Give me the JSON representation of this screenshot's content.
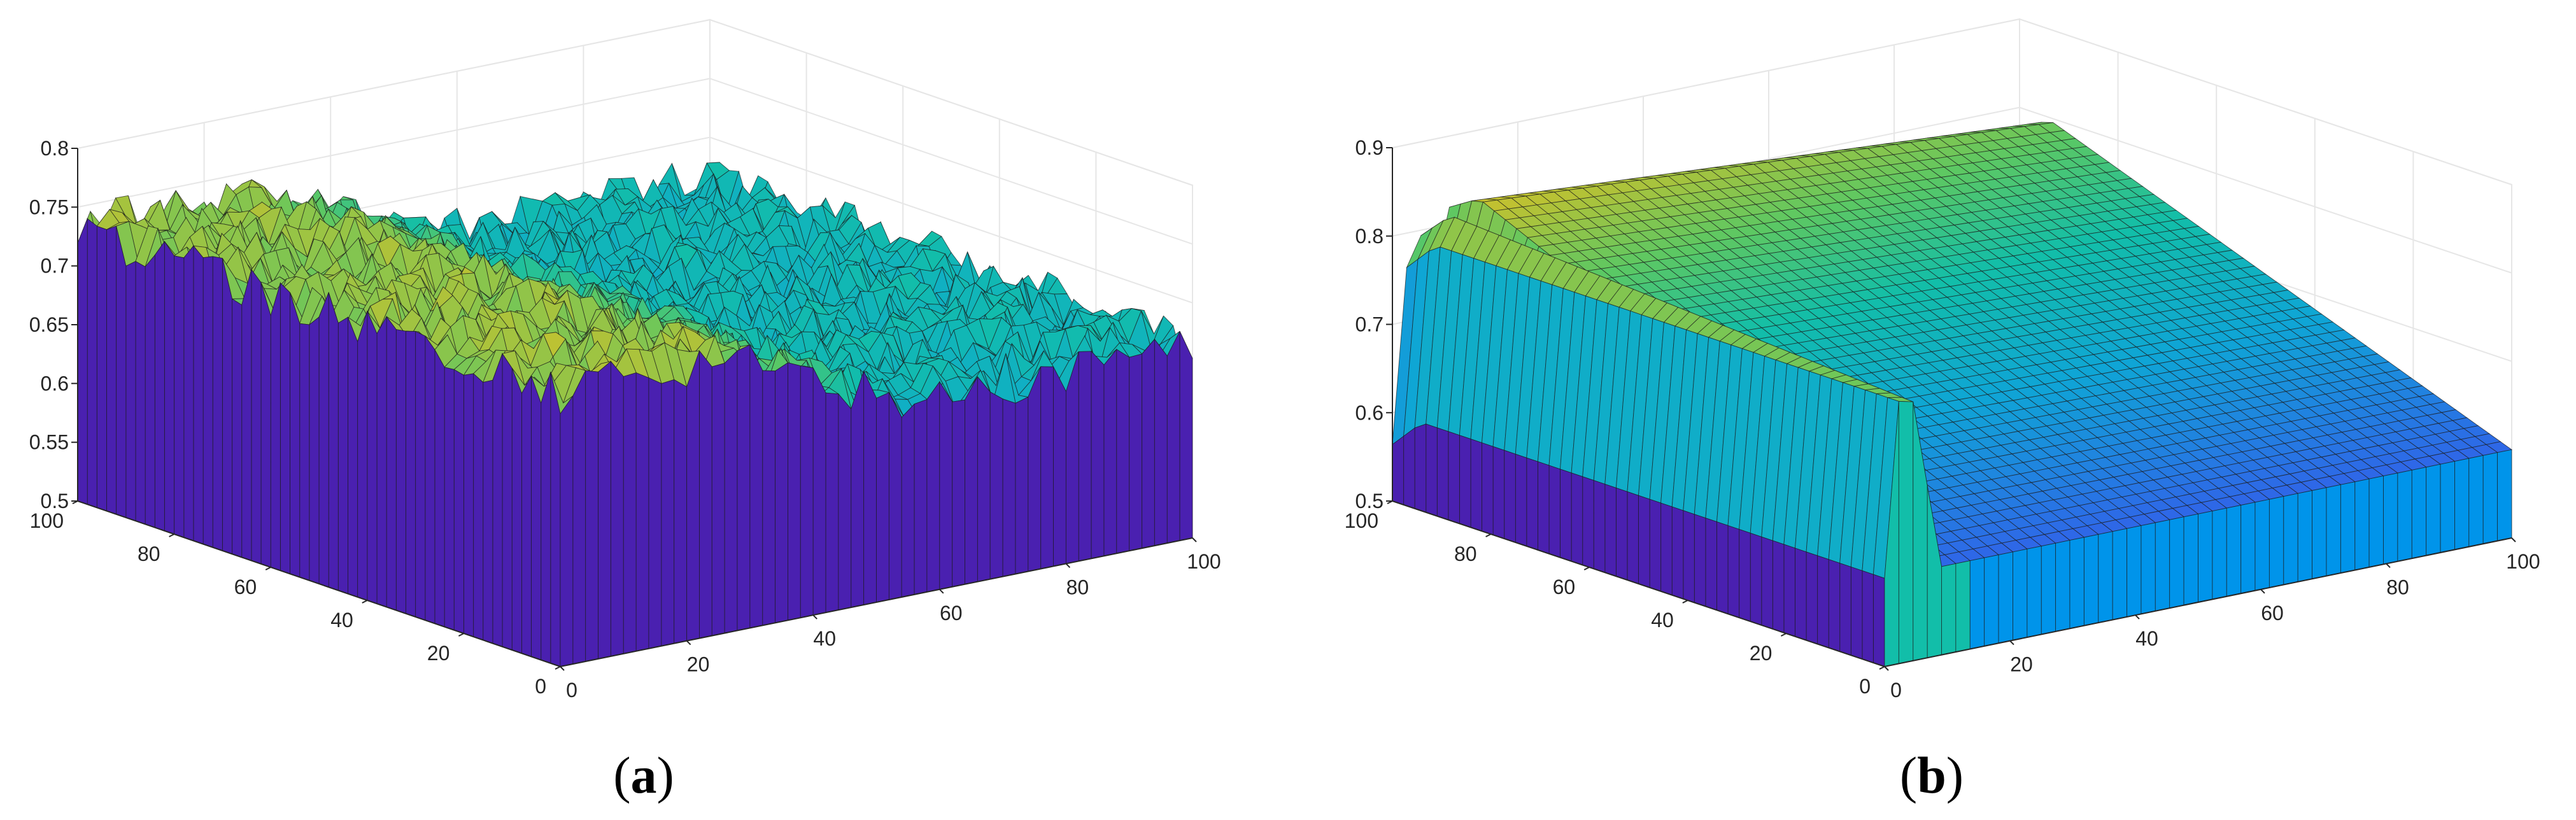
{
  "chart_data": [
    {
      "type": "surface",
      "panel_label": "a",
      "x": {
        "ticks": [
          0,
          20,
          40,
          60,
          80,
          100
        ],
        "range": [
          0,
          100
        ]
      },
      "y": {
        "ticks": [
          0,
          20,
          40,
          60,
          80,
          100
        ],
        "range": [
          0,
          100
        ]
      },
      "z": {
        "ticks": [
          0.5,
          0.55,
          0.6,
          0.65,
          0.7,
          0.75,
          0.8
        ],
        "range": [
          0.5,
          0.8
        ]
      },
      "description_values": {
        "left_edge_mean": 0.73,
        "right_region_mean": 0.66,
        "noise_amplitude": 0.02
      },
      "colors": {
        "low": "#3e26a8",
        "mid": "#12bea9",
        "high": "#fadc2a",
        "wall": "#4a20b0"
      }
    },
    {
      "type": "surface",
      "panel_label": "b",
      "x": {
        "ticks": [
          0,
          20,
          40,
          60,
          80,
          100
        ],
        "range": [
          0,
          100
        ]
      },
      "y": {
        "ticks": [
          0,
          20,
          40,
          60,
          80,
          100
        ],
        "range": [
          0,
          100
        ]
      },
      "z": {
        "ticks": [
          0.5,
          0.6,
          0.7,
          0.8,
          0.9
        ],
        "range": [
          0.5,
          0.9
        ]
      },
      "description_values": {
        "ridge_peak": 0.86,
        "front_edge": 0.6,
        "far_corner": 0.62
      },
      "colors": {
        "low": "#3e26a8",
        "mid": "#0094ea",
        "high": "#f9fb0e",
        "wall": "#4a20b0"
      }
    }
  ]
}
